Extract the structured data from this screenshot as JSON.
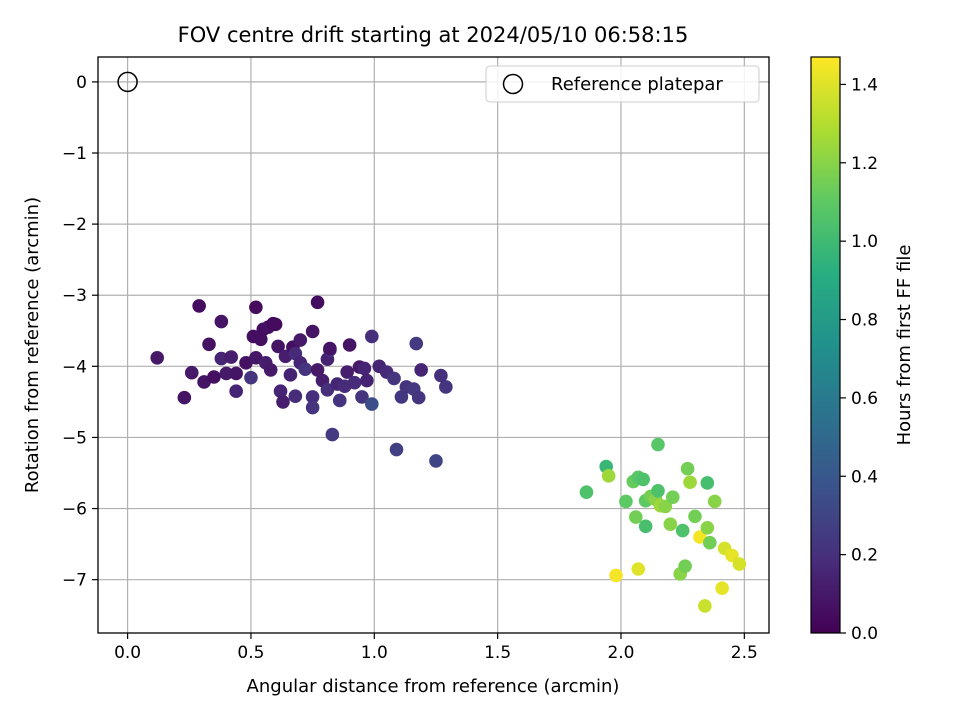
{
  "chart_data": {
    "type": "scatter",
    "title": "FOV centre drift starting at 2024/05/10 06:58:15",
    "xlabel": "Angular distance from reference (arcmin)",
    "ylabel": "Rotation from reference (arcmin)",
    "xlim": [
      -0.12,
      2.6
    ],
    "ylim": [
      -7.75,
      0.35
    ],
    "xticks": [
      0.0,
      0.5,
      1.0,
      1.5,
      2.0,
      2.5
    ],
    "xtick_labels": [
      "0.0",
      "0.5",
      "1.0",
      "1.5",
      "2.0",
      "2.5"
    ],
    "yticks": [
      0,
      -1,
      -2,
      -3,
      -4,
      -5,
      -6,
      -7
    ],
    "ytick_labels": [
      "0",
      "−1",
      "−2",
      "−3",
      "−4",
      "−5",
      "−6",
      "−7"
    ],
    "grid": true,
    "colormap": "viridis",
    "colorbar": {
      "label": "Hours from first FF file",
      "range": [
        0.0,
        1.47
      ],
      "ticks": [
        0.0,
        0.2,
        0.4,
        0.6,
        0.8,
        1.0,
        1.2,
        1.4
      ],
      "tick_labels": [
        "0.0",
        "0.2",
        "0.4",
        "0.6",
        "0.8",
        "1.0",
        "1.2",
        "1.4"
      ]
    },
    "legend": {
      "placement": "top-right",
      "entries": [
        "Reference platepar"
      ]
    },
    "reference_point": {
      "x": 0.0,
      "y": 0.0,
      "marker": "open-circle"
    },
    "points": [
      {
        "x": 0.12,
        "y": -3.88,
        "c": 0.1
      },
      {
        "x": 0.23,
        "y": -4.44,
        "c": 0.08
      },
      {
        "x": 0.26,
        "y": -4.09,
        "c": 0.1
      },
      {
        "x": 0.29,
        "y": -3.15,
        "c": 0.05
      },
      {
        "x": 0.31,
        "y": -4.22,
        "c": 0.08
      },
      {
        "x": 0.33,
        "y": -3.69,
        "c": 0.07
      },
      {
        "x": 0.35,
        "y": -4.15,
        "c": 0.06
      },
      {
        "x": 0.38,
        "y": -3.37,
        "c": 0.08
      },
      {
        "x": 0.38,
        "y": -3.89,
        "c": 0.15
      },
      {
        "x": 0.4,
        "y": -4.1,
        "c": 0.1
      },
      {
        "x": 0.42,
        "y": -3.87,
        "c": 0.12
      },
      {
        "x": 0.44,
        "y": -4.35,
        "c": 0.15
      },
      {
        "x": 0.44,
        "y": -4.1,
        "c": 0.08
      },
      {
        "x": 0.48,
        "y": -3.95,
        "c": 0.07
      },
      {
        "x": 0.5,
        "y": -4.16,
        "c": 0.22
      },
      {
        "x": 0.51,
        "y": -3.58,
        "c": 0.06
      },
      {
        "x": 0.52,
        "y": -3.17,
        "c": 0.04
      },
      {
        "x": 0.52,
        "y": -3.88,
        "c": 0.09
      },
      {
        "x": 0.54,
        "y": -3.62,
        "c": 0.06
      },
      {
        "x": 0.55,
        "y": -3.48,
        "c": 0.05
      },
      {
        "x": 0.56,
        "y": -3.95,
        "c": 0.12
      },
      {
        "x": 0.57,
        "y": -3.45,
        "c": 0.07
      },
      {
        "x": 0.58,
        "y": -4.05,
        "c": 0.1
      },
      {
        "x": 0.59,
        "y": -3.4,
        "c": 0.03
      },
      {
        "x": 0.6,
        "y": -3.41,
        "c": 0.04
      },
      {
        "x": 0.61,
        "y": -3.72,
        "c": 0.08
      },
      {
        "x": 0.62,
        "y": -4.35,
        "c": 0.15
      },
      {
        "x": 0.63,
        "y": -4.5,
        "c": 0.12
      },
      {
        "x": 0.64,
        "y": -3.86,
        "c": 0.12
      },
      {
        "x": 0.66,
        "y": -4.12,
        "c": 0.14
      },
      {
        "x": 0.67,
        "y": -3.73,
        "c": 0.06
      },
      {
        "x": 0.68,
        "y": -3.82,
        "c": 0.17
      },
      {
        "x": 0.68,
        "y": -4.42,
        "c": 0.18
      },
      {
        "x": 0.7,
        "y": -3.63,
        "c": 0.1
      },
      {
        "x": 0.7,
        "y": -3.95,
        "c": 0.15
      },
      {
        "x": 0.72,
        "y": -4.04,
        "c": 0.22
      },
      {
        "x": 0.75,
        "y": -3.51,
        "c": 0.08
      },
      {
        "x": 0.75,
        "y": -4.43,
        "c": 0.2
      },
      {
        "x": 0.75,
        "y": -4.58,
        "c": 0.22
      },
      {
        "x": 0.77,
        "y": -3.1,
        "c": 0.05
      },
      {
        "x": 0.77,
        "y": -4.05,
        "c": 0.1
      },
      {
        "x": 0.79,
        "y": -4.2,
        "c": 0.12
      },
      {
        "x": 0.81,
        "y": -4.33,
        "c": 0.2
      },
      {
        "x": 0.81,
        "y": -3.9,
        "c": 0.14
      },
      {
        "x": 0.82,
        "y": -3.77,
        "c": 0.2
      },
      {
        "x": 0.82,
        "y": -3.75,
        "c": 0.08
      },
      {
        "x": 0.83,
        "y": -4.96,
        "c": 0.25
      },
      {
        "x": 0.85,
        "y": -4.25,
        "c": 0.15
      },
      {
        "x": 0.86,
        "y": -4.48,
        "c": 0.22
      },
      {
        "x": 0.88,
        "y": -4.28,
        "c": 0.18
      },
      {
        "x": 0.89,
        "y": -4.08,
        "c": 0.12
      },
      {
        "x": 0.9,
        "y": -3.7,
        "c": 0.08
      },
      {
        "x": 0.92,
        "y": -4.23,
        "c": 0.18
      },
      {
        "x": 0.94,
        "y": -4.01,
        "c": 0.1
      },
      {
        "x": 0.95,
        "y": -4.43,
        "c": 0.22
      },
      {
        "x": 0.96,
        "y": -4.03,
        "c": 0.15
      },
      {
        "x": 0.97,
        "y": -4.2,
        "c": 0.14
      },
      {
        "x": 0.99,
        "y": -3.58,
        "c": 0.2
      },
      {
        "x": 0.99,
        "y": -4.53,
        "c": 0.35
      },
      {
        "x": 1.02,
        "y": -4.0,
        "c": 0.15
      },
      {
        "x": 1.05,
        "y": -4.08,
        "c": 0.17
      },
      {
        "x": 1.08,
        "y": -4.17,
        "c": 0.22
      },
      {
        "x": 1.09,
        "y": -5.17,
        "c": 0.28
      },
      {
        "x": 1.11,
        "y": -4.43,
        "c": 0.24
      },
      {
        "x": 1.13,
        "y": -4.29,
        "c": 0.22
      },
      {
        "x": 1.16,
        "y": -4.32,
        "c": 0.25
      },
      {
        "x": 1.17,
        "y": -3.68,
        "c": 0.25
      },
      {
        "x": 1.18,
        "y": -4.44,
        "c": 0.22
      },
      {
        "x": 1.19,
        "y": -4.05,
        "c": 0.15
      },
      {
        "x": 1.25,
        "y": -5.33,
        "c": 0.3
      },
      {
        "x": 1.27,
        "y": -4.13,
        "c": 0.2
      },
      {
        "x": 1.29,
        "y": -4.29,
        "c": 0.22
      },
      {
        "x": 1.86,
        "y": -5.77,
        "c": 1.05
      },
      {
        "x": 1.94,
        "y": -5.41,
        "c": 0.98
      },
      {
        "x": 1.95,
        "y": -5.54,
        "c": 1.25
      },
      {
        "x": 1.98,
        "y": -6.94,
        "c": 1.45
      },
      {
        "x": 2.02,
        "y": -5.9,
        "c": 1.1
      },
      {
        "x": 2.05,
        "y": -5.62,
        "c": 1.12
      },
      {
        "x": 2.06,
        "y": -6.12,
        "c": 1.15
      },
      {
        "x": 2.07,
        "y": -6.85,
        "c": 1.4
      },
      {
        "x": 2.07,
        "y": -5.56,
        "c": 1.08
      },
      {
        "x": 2.09,
        "y": -5.59,
        "c": 1.05
      },
      {
        "x": 2.1,
        "y": -5.89,
        "c": 1.1
      },
      {
        "x": 2.1,
        "y": -6.25,
        "c": 1.03
      },
      {
        "x": 2.12,
        "y": -5.83,
        "c": 1.15
      },
      {
        "x": 2.14,
        "y": -5.87,
        "c": 1.2
      },
      {
        "x": 2.15,
        "y": -5.75,
        "c": 1.05
      },
      {
        "x": 2.15,
        "y": -5.1,
        "c": 1.08
      },
      {
        "x": 2.16,
        "y": -5.96,
        "c": 1.25
      },
      {
        "x": 2.18,
        "y": -5.97,
        "c": 1.2
      },
      {
        "x": 2.2,
        "y": -6.22,
        "c": 1.2
      },
      {
        "x": 2.21,
        "y": -5.84,
        "c": 1.15
      },
      {
        "x": 2.24,
        "y": -6.92,
        "c": 1.2
      },
      {
        "x": 2.25,
        "y": -6.31,
        "c": 1.05
      },
      {
        "x": 2.26,
        "y": -6.81,
        "c": 1.15
      },
      {
        "x": 2.27,
        "y": -5.44,
        "c": 1.15
      },
      {
        "x": 2.28,
        "y": -5.63,
        "c": 1.25
      },
      {
        "x": 2.3,
        "y": -6.11,
        "c": 1.15
      },
      {
        "x": 2.32,
        "y": -6.4,
        "c": 1.45
      },
      {
        "x": 2.34,
        "y": -7.37,
        "c": 1.35
      },
      {
        "x": 2.35,
        "y": -5.64,
        "c": 1.02
      },
      {
        "x": 2.35,
        "y": -6.27,
        "c": 1.2
      },
      {
        "x": 2.36,
        "y": -6.48,
        "c": 1.15
      },
      {
        "x": 2.38,
        "y": -5.9,
        "c": 1.2
      },
      {
        "x": 2.41,
        "y": -7.12,
        "c": 1.42
      },
      {
        "x": 2.42,
        "y": -6.56,
        "c": 1.38
      },
      {
        "x": 2.45,
        "y": -6.66,
        "c": 1.42
      },
      {
        "x": 2.48,
        "y": -6.78,
        "c": 1.38
      }
    ]
  }
}
